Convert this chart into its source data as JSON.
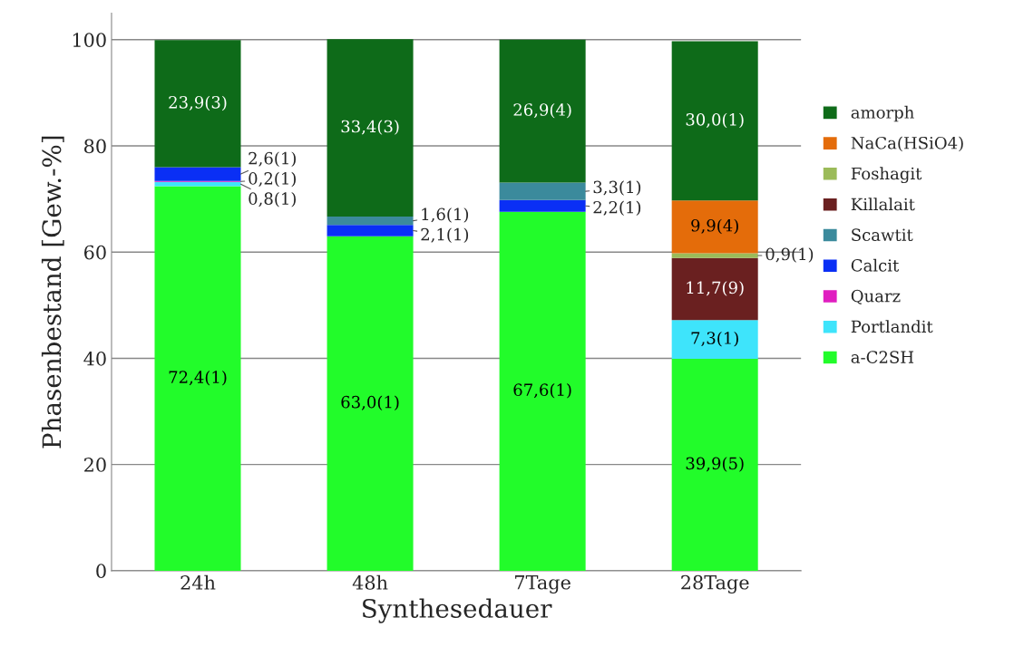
{
  "chart_data": {
    "type": "bar",
    "stacked": true,
    "xlabel": "Synthesedauer",
    "ylabel": "Phasenbestand [Gew.-%]",
    "categories": [
      "24h",
      "48h",
      "7Tage",
      "28Tage"
    ],
    "ylim": [
      0,
      105
    ],
    "yticks": [
      0,
      20,
      40,
      60,
      80,
      100
    ],
    "grid": "y",
    "legend": "right",
    "series": [
      {
        "name": "a-C2SH",
        "color": "#22fc2a",
        "values": [
          72.4,
          63.0,
          67.6,
          39.9
        ],
        "value_labels": [
          "72,4(1)",
          "63,0(1)",
          "67,6(1)",
          "39,9(5)"
        ]
      },
      {
        "name": "Portlandit",
        "color": "#3ee4fb",
        "values": [
          0.8,
          null,
          null,
          7.3
        ],
        "value_labels": [
          "0,8(1)",
          null,
          null,
          "7,3(1)"
        ]
      },
      {
        "name": "Quarz",
        "color": "#e01ec0",
        "values": [
          0.2,
          null,
          null,
          null
        ],
        "value_labels": [
          "0,2(1)",
          null,
          null,
          null
        ]
      },
      {
        "name": "Calcit",
        "color": "#0a2ff5",
        "values": [
          2.6,
          2.1,
          2.2,
          null
        ],
        "value_labels": [
          "2,6(1)",
          "2,1(1)",
          "2,2(1)",
          null
        ]
      },
      {
        "name": "Scawtit",
        "color": "#3b8a9c",
        "values": [
          null,
          1.6,
          3.3,
          null
        ],
        "value_labels": [
          null,
          "1,6(1)",
          "3,3(1)",
          null
        ]
      },
      {
        "name": "Killalait",
        "color": "#6a2020",
        "values": [
          null,
          null,
          null,
          11.7
        ],
        "value_labels": [
          null,
          null,
          null,
          "11,7(9)"
        ]
      },
      {
        "name": "Foshagit",
        "color": "#9bbb59",
        "values": [
          null,
          null,
          null,
          0.9
        ],
        "value_labels": [
          null,
          null,
          null,
          "0,9(1)"
        ]
      },
      {
        "name": "NaCa(HSiO4)",
        "color": "#e46c0a",
        "values": [
          null,
          null,
          null,
          9.9
        ],
        "value_labels": [
          null,
          null,
          null,
          "9,9(4)"
        ]
      },
      {
        "name": "amorph",
        "color": "#0e6b19",
        "values": [
          23.9,
          33.4,
          26.9,
          30.0
        ],
        "value_labels": [
          "23,9(3)",
          "33,4(3)",
          "26,9(4)",
          "30,0(1)"
        ]
      }
    ]
  }
}
